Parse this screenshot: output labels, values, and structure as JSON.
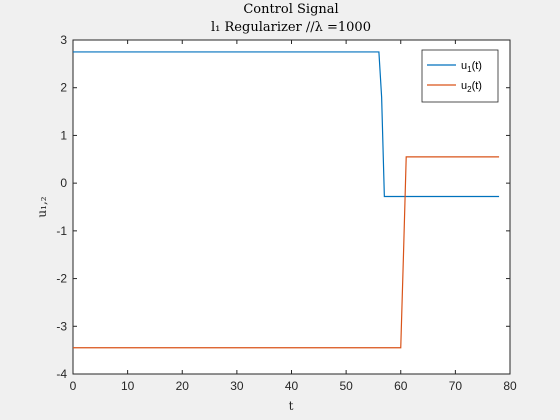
{
  "chart_data": {
    "type": "line",
    "title": "Control Signal",
    "subtitle": "l₁ Regularizer //λ =1000",
    "xlabel": "t",
    "ylabel": "u₁,₂",
    "xlim": [
      0,
      80
    ],
    "ylim": [
      -4,
      3
    ],
    "xticks": [
      0,
      10,
      20,
      30,
      40,
      50,
      60,
      70,
      80
    ],
    "yticks": [
      -4,
      -3,
      -2,
      -1,
      0,
      1,
      2,
      3
    ],
    "grid": false,
    "legend_position": "top-right",
    "series": [
      {
        "name": "u₁(t)",
        "legend_main": "u",
        "legend_sub": "1",
        "legend_tail": "(t)",
        "color": "#0072bd",
        "x": [
          0,
          56,
          56.5,
          57,
          58,
          78
        ],
        "y": [
          2.75,
          2.75,
          1.8,
          -0.28,
          -0.28,
          -0.28
        ]
      },
      {
        "name": "u₂(t)",
        "legend_main": "u",
        "legend_sub": "2",
        "legend_tail": "(t)",
        "color": "#d95319",
        "x": [
          0,
          60,
          60.5,
          61,
          62,
          78
        ],
        "y": [
          -3.45,
          -3.45,
          -1.5,
          0.55,
          0.55,
          0.55
        ]
      }
    ]
  }
}
